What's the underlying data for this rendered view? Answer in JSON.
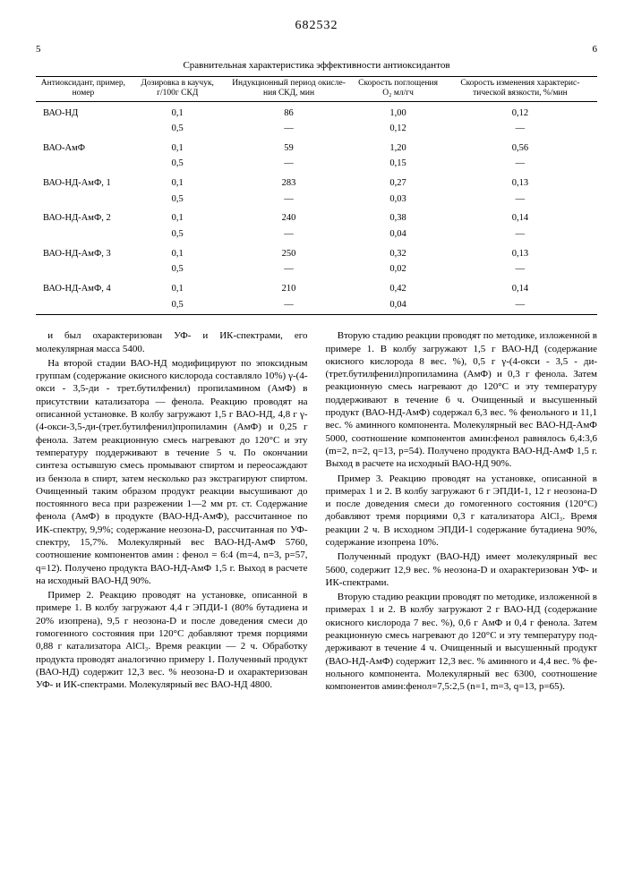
{
  "patent_number": "682532",
  "page_left": "5",
  "page_right": "6",
  "table_title": "Сравнительная характеристика эффективности антиоксидантов",
  "columns": [
    "Антиоксидант,\nпример, номер",
    "Дозировка в каучук, г/100г СКД",
    "Индукционный период окисле­ния СКД, мин",
    "Скорость погло­щения O₂ мл/гч",
    "Скорость измене­ния характерис­тической вяз­кости, %/мин"
  ],
  "rows": [
    [
      "ВАО-НД",
      "0,1",
      "86",
      "1,00",
      "0,12"
    ],
    [
      "",
      "0,5",
      "—",
      "0,12",
      "—"
    ],
    [
      "ВАО-АмФ",
      "0,1",
      "59",
      "1,20",
      "0,56"
    ],
    [
      "",
      "0,5",
      "—",
      "0,15",
      "—"
    ],
    [
      "ВАО-НД-АмФ, 1",
      "0,1",
      "283",
      "0,27",
      "0,13"
    ],
    [
      "",
      "0,5",
      "—",
      "0,03",
      "—"
    ],
    [
      "ВАО-НД-АмФ, 2",
      "0,1",
      "240",
      "0,38",
      "0,14"
    ],
    [
      "",
      "0,5",
      "—",
      "0,04",
      "—"
    ],
    [
      "ВАО-НД-АмФ, 3",
      "0,1",
      "250",
      "0,32",
      "0,13"
    ],
    [
      "",
      "0,5",
      "—",
      "0,02",
      "—"
    ],
    [
      "ВАО-НД-АмФ, 4",
      "0,1",
      "210",
      "0,42",
      "0,14"
    ],
    [
      "",
      "0,5",
      "—",
      "0,04",
      "—"
    ]
  ],
  "paras": [
    "и был охарактеризован УФ- и ИК-спектра­ми, его молекулярная масса 5400.",
    "На второй стадии ВАО-НД модифициру­ют по эпоксидным группам (содержание окисного кислорода составляло 10%) γ-(4-окси - 3,5-ди - трет.бутилфенил) пропил­амином (АмФ) в присутствии катализато­ра — фенола. Реакцию проводят на описан­ной установке. В колбу загружают 1,5 г ВАО-НД, 4,8 г γ-(4-окси-3,5-ди-(трет.бутил­фенил)пропиламин (АмФ) и 0,25 г фенола. Затем реакционную смесь нагревают до 120°C и эту температуру поддерживают в течение 5 ч. По окончании синтеза остыв­шую смесь промывают спиртом и пере­осаждают из бензола в спирт, затем не­сколько раз экстрагируют спиртом. Очи­щенный таким образом продукт реакции высушивают до постоянного веса при раз­режении 1—2 мм рт. ст. Содержание фено­ла (АмФ) в продукте (ВАО-НД-АмФ), рассчитанное по ИК-спектру, 9,9%; содер­жание неозона-D, рассчитанная по УФ-спектру, 15,7%. Молекулярный вес ВАО-НД-АмФ 5760, соотношение компонен­тов амин : фенол = 6:4 (m=4, n=3, p=57, q=12). Получено продукта ВАО-НД-АмФ 1,5 г. Выход в расчете на исходный ВАО-НД 90%.",
    "Пример 2. Реакцию проводят на уста­новке, описанной в примере 1. В колбу за­гружают 4,4 г ЭПДИ-1 (80% бутадиена и 20% изопрена), 9,5 г неозона-D и после доведения смеси до гомогенного состояния при 120°C добавляют тремя порциями 0,88 г катализатора AlCl₃. Время реак­ции — 2 ч. Обработку продукта проводят аналогично примеру 1. Полученный про­дукт (ВАО-НД) содержит 12,3 вес. % нео­зона-D и охарактеризован УФ- и ИК-спект­рами. Молекулярный вес ВАО-НД 4800.",
    "Вторую стадию реакции проводят по ме­тодике, изложенной в примере 1. В колбу загружают 1,5 г ВАО-НД (содержание окисного кислорода 8 вес. %), 0,5 г γ-(4-окси - 3,5 - ди-(трет.бутилфенил)пропилами­на (АмФ) и 0,3 г фенола. Затем реакцион­ную смесь нагревают до 120°C и эту темпе­ратуру поддерживают в течение 6 ч. Очищенный и высушенный продукт (ВАО-НД-АмФ) содержал 6,3 вес. % фе­нольного и 11,1 вес. % аминного компонен­та. Молекулярный вес ВАО-НД-АмФ 5000, соотношение компонентов амин:фенол рав­нялось 6,4:3,6 (m=2, n=2, q=13, p=54). Получено продукта ВАО-НД-АмФ 1,5 г. Вы­ход в расчете на исходный ВАО-НД 90%.",
    "Пример 3. Реакцию проводят на уста­новке, описанной в примерах 1 и 2. В кол­бу загружают 6 г ЭПДИ-1, 12 г неозона-D и после доведения смеси до гомогенного со­стояния (120°C) добавляют тремя порция­ми 0,3 г катализатора AlCl₃. Время реак­ции 2 ч. В исходном ЭПДИ-1 содержание бутадиена 90%, содержание изопрена 10%.",
    "Полученный продукт (ВАО-НД) имеет молекулярный вес 5600, содержит 12,9 вес. % неозона-D и охарактеризован УФ- и ИК-спектрами.",
    "Вторую стадию реакции проводят по ме­тодике, изложенной в примерах 1 и 2. В колбу загружают 2 г ВАО-НД (содержание окисного кислорода 7 вес. %), 0,6 г АмФ и 0,4 г фенола. Затем реакционную смесь нагревают до 120°C и эту температуру под­держивают в течение 4 ч. Очищенный и вы­сушенный продукт (ВАО-НД-АмФ) содер­жит 12,3 вес. % аминного и 4,4 вес. % фе­нольного компонента. Молекулярный вес 6300, соотношение компонентов амин:фе­нол=7,5:2,5 (n=1, m=3, q=13, p=65)."
  ]
}
